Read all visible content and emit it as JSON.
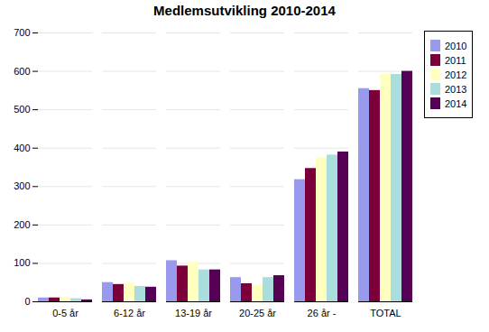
{
  "chart_data": {
    "type": "bar",
    "title": "Medlemsutvikling 2010-2014",
    "categories": [
      "0-5 år",
      "6-12 år",
      "13-19 år",
      "20-25 år",
      "26 år -",
      "TOTAL"
    ],
    "series": [
      {
        "name": "2010",
        "color": "#9999EE",
        "values": [
          10,
          50,
          107,
          63,
          318,
          555
        ]
      },
      {
        "name": "2011",
        "color": "#7B003A",
        "values": [
          10,
          45,
          93,
          47,
          347,
          550
        ]
      },
      {
        "name": "2012",
        "color": "#FFFFC0",
        "values": [
          12,
          48,
          103,
          42,
          375,
          592
        ]
      },
      {
        "name": "2013",
        "color": "#AADDDD",
        "values": [
          8,
          40,
          83,
          63,
          382,
          592
        ]
      },
      {
        "name": "2014",
        "color": "#550055",
        "values": [
          5,
          38,
          83,
          68,
          390,
          600
        ]
      }
    ],
    "ylim": [
      0,
      700
    ],
    "yticks": [
      0,
      100,
      200,
      300,
      400,
      500,
      600,
      700
    ],
    "grid": true,
    "legend": "upper right"
  }
}
